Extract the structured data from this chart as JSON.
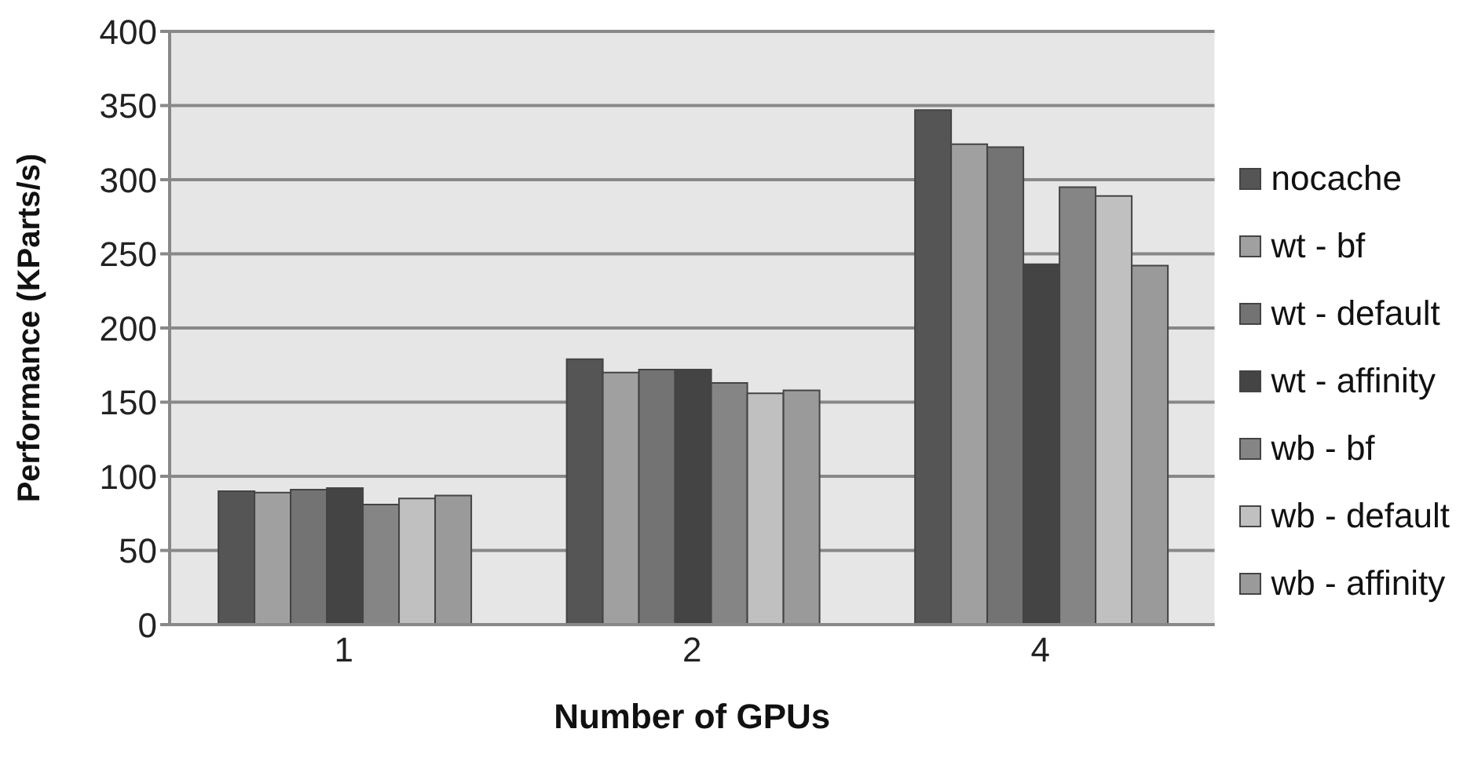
{
  "chart_data": {
    "type": "bar",
    "xlabel": "Number of GPUs",
    "ylabel": "Performance (KParts/s)",
    "categories": [
      "1",
      "2",
      "4"
    ],
    "series": [
      {
        "name": "nocache",
        "color": "#555555",
        "values": [
          90,
          179,
          347
        ]
      },
      {
        "name": "wt - bf",
        "color": "#a0a0a0",
        "values": [
          89,
          170,
          324
        ]
      },
      {
        "name": "wt - default",
        "color": "#737373",
        "values": [
          91,
          172,
          322
        ]
      },
      {
        "name": "wt - affinity",
        "color": "#444444",
        "values": [
          92,
          172,
          243
        ]
      },
      {
        "name": "wb - bf",
        "color": "#858585",
        "values": [
          81,
          163,
          295
        ]
      },
      {
        "name": "wb - default",
        "color": "#c0c0c0",
        "values": [
          85,
          156,
          289
        ]
      },
      {
        "name": "wb - affinity",
        "color": "#9a9a9a",
        "values": [
          87,
          158,
          242
        ]
      }
    ],
    "ylim": [
      0,
      400
    ],
    "yticks": [
      0,
      50,
      100,
      150,
      200,
      250,
      300,
      350,
      400
    ],
    "grid": "y",
    "legend": "right"
  }
}
